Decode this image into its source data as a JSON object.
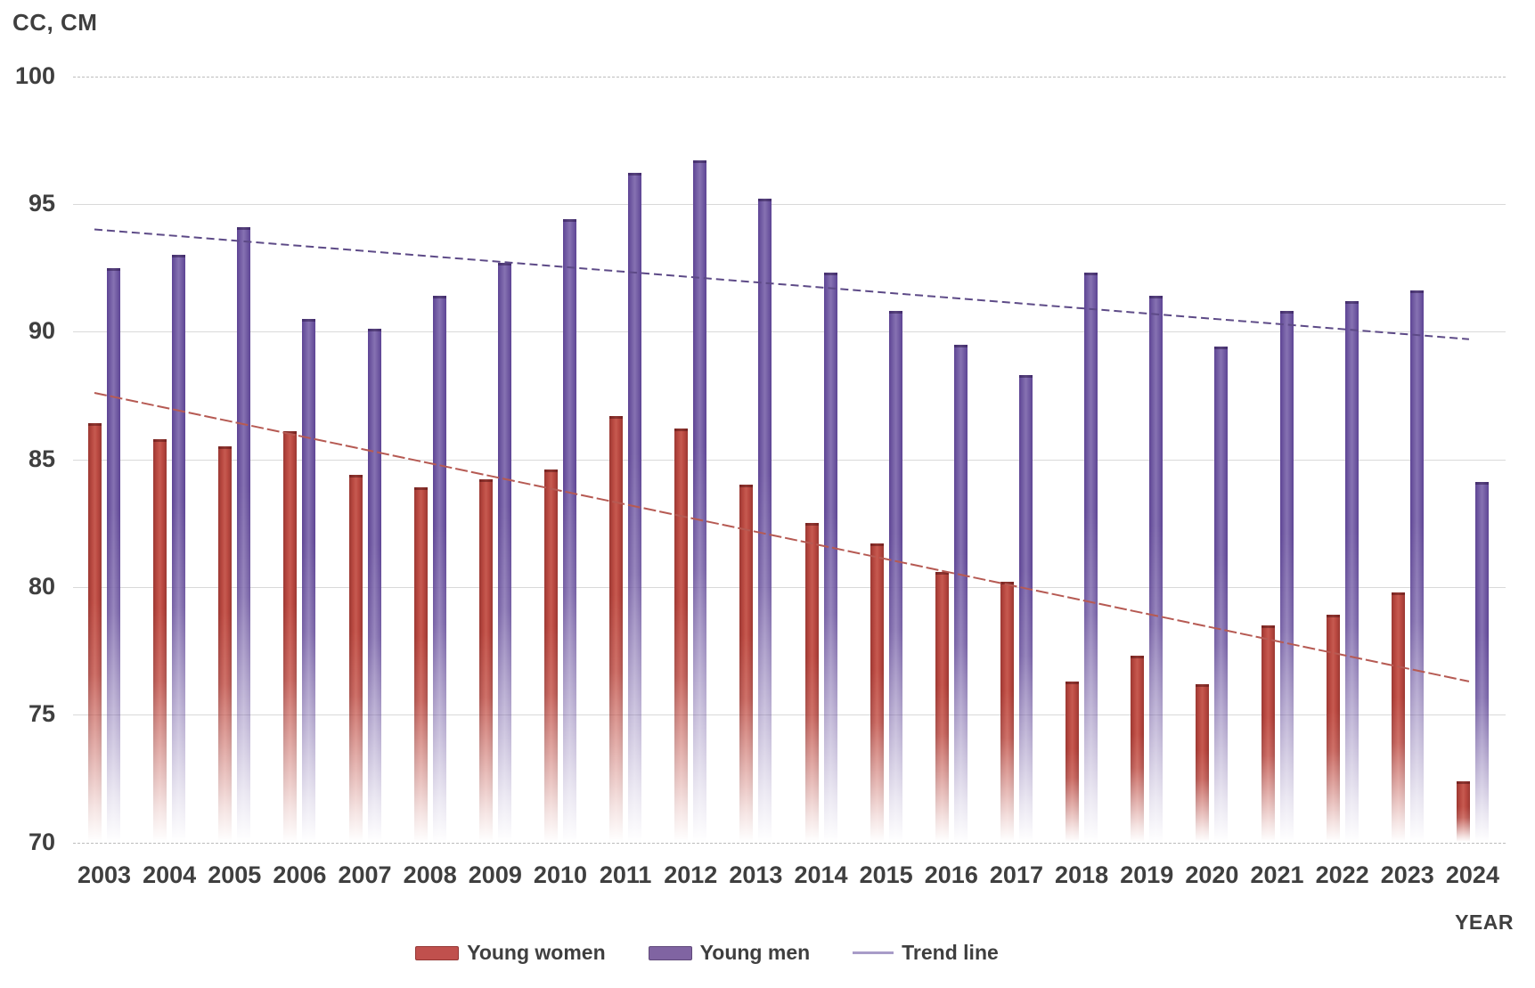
{
  "chart_data": {
    "type": "bar",
    "y_axis_title": "CC, CM",
    "x_axis_title": "YEAR",
    "ylim": [
      70,
      100
    ],
    "yticks": [
      100,
      95,
      90,
      85,
      80,
      75,
      70
    ],
    "grid": "horizontal",
    "legend_position": "bottom",
    "legend": [
      "Young women",
      "Young men",
      "Trend line"
    ],
    "categories": [
      "2003",
      "2004",
      "2005",
      "2006",
      "2007",
      "2008",
      "2009",
      "2010",
      "2011",
      "2012",
      "2013",
      "2014",
      "2015",
      "2016",
      "2017",
      "2018",
      "2019",
      "2020",
      "2021",
      "2022",
      "2023",
      "2024"
    ],
    "series": [
      {
        "name": "Young women",
        "color": "#c0504d",
        "values": [
          86.4,
          85.8,
          85.5,
          86.1,
          84.4,
          83.9,
          84.2,
          84.6,
          86.7,
          86.2,
          84.0,
          82.5,
          81.7,
          80.6,
          80.2,
          76.3,
          77.3,
          76.2,
          78.5,
          78.9,
          79.8,
          72.4
        ]
      },
      {
        "name": "Young men",
        "color": "#8064a2",
        "values": [
          92.5,
          93.0,
          94.1,
          90.5,
          90.1,
          91.4,
          92.7,
          94.4,
          96.2,
          96.7,
          95.2,
          92.3,
          90.8,
          89.5,
          88.3,
          92.3,
          91.4,
          89.4,
          90.8,
          91.2,
          91.6,
          84.1
        ]
      }
    ],
    "trend_lines": [
      {
        "series": "Young men",
        "color": "#5d4a87",
        "start_value": 94.0,
        "end_value": 89.7
      },
      {
        "series": "Young women",
        "color": "#b65a53",
        "start_value": 87.6,
        "end_value": 76.3
      }
    ]
  }
}
